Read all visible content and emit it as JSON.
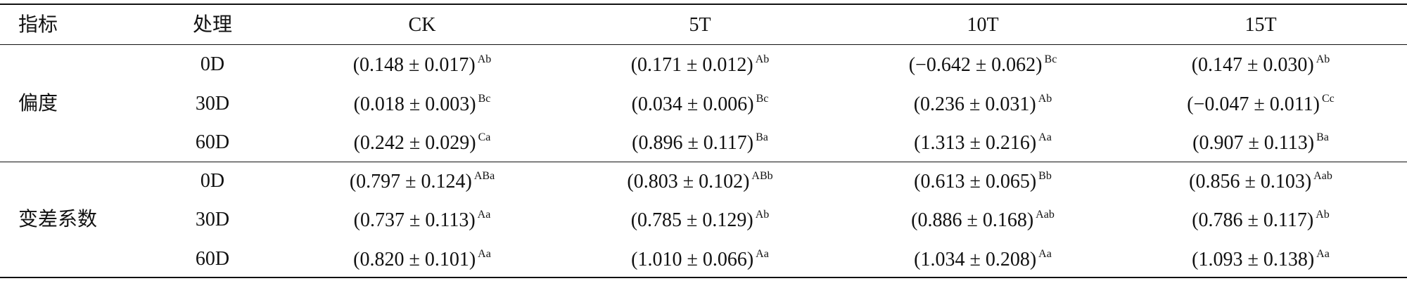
{
  "table": {
    "header": [
      "指标",
      "处理",
      "CK",
      "5T",
      "10T",
      "15T"
    ],
    "groups": [
      {
        "label": "偏度",
        "rows": [
          {
            "treatment": "0D",
            "cells": [
              {
                "value": "(0.148 ± 0.017)",
                "sup": "Ab"
              },
              {
                "value": "(0.171 ± 0.012)",
                "sup": "Ab"
              },
              {
                "value": "(−0.642 ± 0.062)",
                "sup": "Bc"
              },
              {
                "value": "(0.147 ± 0.030)",
                "sup": "Ab"
              }
            ]
          },
          {
            "treatment": "30D",
            "cells": [
              {
                "value": "(0.018 ± 0.003)",
                "sup": "Bc"
              },
              {
                "value": "(0.034 ± 0.006)",
                "sup": "Bc"
              },
              {
                "value": "(0.236 ± 0.031)",
                "sup": "Ab"
              },
              {
                "value": "(−0.047 ± 0.011)",
                "sup": "Cc"
              }
            ]
          },
          {
            "treatment": "60D",
            "cells": [
              {
                "value": "(0.242 ± 0.029)",
                "sup": "Ca"
              },
              {
                "value": "(0.896 ± 0.117)",
                "sup": "Ba"
              },
              {
                "value": "(1.313 ± 0.216)",
                "sup": "Aa"
              },
              {
                "value": "(0.907 ± 0.113)",
                "sup": "Ba"
              }
            ]
          }
        ]
      },
      {
        "label": "变差系数",
        "rows": [
          {
            "treatment": "0D",
            "cells": [
              {
                "value": "(0.797 ± 0.124)",
                "sup": "ABa"
              },
              {
                "value": "(0.803 ± 0.102)",
                "sup": "ABb"
              },
              {
                "value": "(0.613 ± 0.065)",
                "sup": "Bb"
              },
              {
                "value": "(0.856 ± 0.103)",
                "sup": "Aab"
              }
            ]
          },
          {
            "treatment": "30D",
            "cells": [
              {
                "value": "(0.737 ± 0.113)",
                "sup": "Aa"
              },
              {
                "value": "(0.785 ± 0.129)",
                "sup": "Ab"
              },
              {
                "value": "(0.886 ± 0.168)",
                "sup": "Aab"
              },
              {
                "value": "(0.786 ± 0.117)",
                "sup": "Ab"
              }
            ]
          },
          {
            "treatment": "60D",
            "cells": [
              {
                "value": "(0.820 ± 0.101)",
                "sup": "Aa"
              },
              {
                "value": "(1.010 ± 0.066)",
                "sup": "Aa"
              },
              {
                "value": "(1.034 ± 0.208)",
                "sup": "Aa"
              },
              {
                "value": "(1.093 ± 0.138)",
                "sup": "Aa"
              }
            ]
          }
        ]
      }
    ]
  }
}
